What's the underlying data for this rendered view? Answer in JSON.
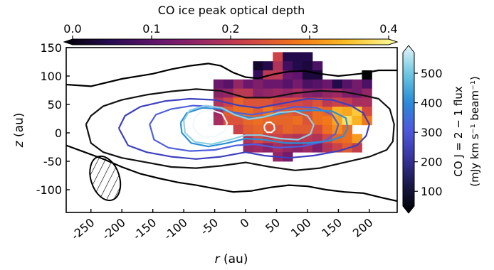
{
  "chart_data": {
    "type": "heatmap",
    "title": "",
    "xlabel": "r (au)",
    "ylabel": "z (au)",
    "xlim": [
      -290,
      245
    ],
    "ylim": [
      -140,
      150
    ],
    "xticks": [
      -250,
      -200,
      -150,
      -100,
      -50,
      0,
      50,
      100,
      150,
      200
    ],
    "xtick_labels": [
      "-250",
      "-200",
      "-150",
      "-100",
      "-50",
      "0",
      "50",
      "100",
      "150",
      "200"
    ],
    "yticks": [
      -100,
      -50,
      0,
      50,
      100,
      150
    ],
    "ytick_labels": [
      "-100",
      "-50",
      "0",
      "50",
      "100",
      "150"
    ],
    "heatmap": {
      "colorbar_label": "CO ice peak optical depth",
      "vmin": 0.0,
      "vmax": 0.4,
      "colorbar_ticks": [
        0.0,
        0.1,
        0.2,
        0.3,
        0.4
      ],
      "colorbar_tick_labels": [
        "0.0",
        "0.1",
        "0.2",
        "0.3",
        "0.4"
      ],
      "cell_size_au": 16,
      "x0_au": -68,
      "y_top_au": 142,
      "rows": [
        [
          null,
          null,
          null,
          null,
          null,
          null,
          null,
          0.22,
          0.05,
          0.05,
          0.05,
          null,
          null,
          null,
          null,
          null,
          null,
          null
        ],
        [
          null,
          null,
          null,
          null,
          null,
          0.03,
          0.05,
          0.19,
          0.08,
          0.05,
          0.04,
          0.09,
          null,
          null,
          null,
          null,
          null,
          null
        ],
        [
          null,
          null,
          null,
          null,
          null,
          0.07,
          0.2,
          0.2,
          0.12,
          0.11,
          0.04,
          0.04,
          null,
          null,
          null,
          null,
          0.0,
          null
        ],
        [
          null,
          0.12,
          0.1,
          0.16,
          0.12,
          0.14,
          0.12,
          0.12,
          0.1,
          0.13,
          0.09,
          0.1,
          0.12,
          0.05,
          0.1,
          0.13,
          0.09,
          null
        ],
        [
          null,
          0.15,
          0.16,
          0.2,
          0.2,
          0.15,
          0.16,
          0.17,
          0.16,
          0.18,
          0.15,
          0.14,
          0.16,
          0.17,
          0.14,
          0.13,
          0.16,
          null
        ],
        [
          null,
          0.19,
          0.22,
          0.26,
          0.24,
          0.24,
          0.24,
          0.22,
          0.23,
          0.23,
          0.22,
          0.24,
          0.2,
          0.22,
          0.21,
          0.18,
          0.18,
          null
        ],
        [
          null,
          0.17,
          0.25,
          0.27,
          0.27,
          0.25,
          0.28,
          0.25,
          0.25,
          0.24,
          0.24,
          0.27,
          0.26,
          0.33,
          0.32,
          0.35,
          0.23,
          null
        ],
        [
          null,
          0.18,
          0.24,
          0.24,
          0.26,
          0.27,
          0.26,
          0.26,
          0.26,
          0.27,
          0.24,
          0.27,
          0.28,
          0.32,
          0.37,
          0.33,
          0.28,
          null
        ],
        [
          null,
          null,
          null,
          0.22,
          0.25,
          0.26,
          0.24,
          0.24,
          0.26,
          0.25,
          0.25,
          0.23,
          0.27,
          0.3,
          0.27,
          null,
          null,
          null
        ],
        [
          null,
          null,
          null,
          null,
          0.19,
          0.23,
          0.21,
          0.22,
          0.2,
          0.19,
          0.2,
          0.19,
          0.23,
          0.26,
          0.27,
          0.31,
          null,
          null
        ],
        [
          null,
          null,
          null,
          null,
          0.16,
          0.17,
          0.15,
          0.18,
          0.16,
          0.15,
          0.17,
          0.14,
          0.19,
          0.22,
          0.25,
          0.21,
          null,
          null
        ],
        [
          null,
          null,
          null,
          null,
          null,
          null,
          null,
          0.16,
          0.13,
          null,
          null,
          null,
          null,
          null,
          null,
          null,
          null,
          null
        ]
      ]
    },
    "contours": {
      "colorbar_label_line1": "CO J = 2 − 1 flux",
      "colorbar_label_line2": "(mJy km s⁻¹ beam⁻¹)",
      "vmin": 50,
      "vmax": 570,
      "colorbar_ticks": [
        100,
        200,
        300,
        400,
        500
      ],
      "colorbar_tick_labels": [
        "100",
        "200",
        "300",
        "400",
        "500"
      ],
      "levels": [
        {
          "flux": 60,
          "color": "#000000",
          "points": [
            [
              -290,
              85
            ],
            [
              -250,
              82
            ],
            [
              -200,
              95
            ],
            [
              -150,
              104
            ],
            [
              -120,
              112
            ],
            [
              -90,
              118
            ],
            [
              -60,
              122
            ],
            [
              -40,
              118
            ],
            [
              -20,
              106
            ],
            [
              0,
              98
            ],
            [
              20,
              96
            ],
            [
              45,
              103
            ],
            [
              70,
              108
            ],
            [
              95,
              109
            ],
            [
              120,
              104
            ],
            [
              150,
              100
            ],
            [
              185,
              104
            ],
            [
              215,
              110
            ],
            [
              245,
              110
            ]
          ]
        },
        {
          "flux": 60,
          "color": "#000000",
          "points": [
            [
              -290,
              -22
            ],
            [
              -260,
              -34
            ],
            [
              -230,
              -46
            ],
            [
              -200,
              -60
            ],
            [
              -170,
              -72
            ],
            [
              -140,
              -80
            ],
            [
              -110,
              -87
            ],
            [
              -80,
              -92
            ],
            [
              -50,
              -98
            ],
            [
              -20,
              -104
            ],
            [
              10,
              -102
            ],
            [
              40,
              -96
            ],
            [
              70,
              -92
            ],
            [
              100,
              -94
            ],
            [
              130,
              -100
            ],
            [
              160,
              -104
            ],
            [
              190,
              -106
            ],
            [
              220,
              -114
            ],
            [
              245,
              -120
            ]
          ]
        },
        {
          "flux": 100,
          "color": "#111111",
          "points": [
            [
              -258,
              15
            ],
            [
              -250,
              30
            ],
            [
              -230,
              47
            ],
            [
              -200,
              58
            ],
            [
              -160,
              67
            ],
            [
              -120,
              73
            ],
            [
              -80,
              77
            ],
            [
              -40,
              74
            ],
            [
              0,
              62
            ],
            [
              40,
              62
            ],
            [
              80,
              70
            ],
            [
              120,
              74
            ],
            [
              160,
              72
            ],
            [
              190,
              66
            ],
            [
              215,
              60
            ],
            [
              233,
              42
            ],
            [
              240,
              15
            ],
            [
              238,
              -15
            ],
            [
              228,
              -30
            ],
            [
              200,
              -42
            ],
            [
              160,
              -52
            ],
            [
              120,
              -62
            ],
            [
              80,
              -66
            ],
            [
              40,
              -60
            ],
            [
              0,
              -52
            ],
            [
              -40,
              -58
            ],
            [
              -80,
              -62
            ],
            [
              -120,
              -60
            ],
            [
              -160,
              -52
            ],
            [
              -200,
              -44
            ],
            [
              -230,
              -34
            ],
            [
              -250,
              -18
            ],
            [
              -258,
              15
            ]
          ]
        },
        {
          "flux": 180,
          "color": "#3d3fbd",
          "points": [
            [
              -205,
              8
            ],
            [
              -195,
              30
            ],
            [
              -170,
              46
            ],
            [
              -130,
              56
            ],
            [
              -90,
              60
            ],
            [
              -50,
              58
            ],
            [
              -10,
              48
            ],
            [
              20,
              44
            ],
            [
              60,
              52
            ],
            [
              100,
              60
            ],
            [
              140,
              58
            ],
            [
              170,
              48
            ],
            [
              190,
              35
            ],
            [
              200,
              15
            ],
            [
              195,
              -5
            ],
            [
              180,
              -22
            ],
            [
              150,
              -32
            ],
            [
              110,
              -40
            ],
            [
              70,
              -44
            ],
            [
              30,
              -40
            ],
            [
              0,
              -34
            ],
            [
              -40,
              -42
            ],
            [
              -80,
              -46
            ],
            [
              -120,
              -42
            ],
            [
              -160,
              -34
            ],
            [
              -190,
              -22
            ],
            [
              -205,
              8
            ]
          ]
        },
        {
          "flux": 260,
          "color": "#4f5fdc",
          "points": [
            [
              -155,
              15
            ],
            [
              -145,
              32
            ],
            [
              -120,
              42
            ],
            [
              -85,
              48
            ],
            [
              -50,
              46
            ],
            [
              -20,
              36
            ],
            [
              10,
              32
            ],
            [
              45,
              38
            ],
            [
              80,
              46
            ],
            [
              115,
              44
            ],
            [
              140,
              32
            ],
            [
              150,
              15
            ],
            [
              145,
              -2
            ],
            [
              125,
              -16
            ],
            [
              90,
              -24
            ],
            [
              50,
              -26
            ],
            [
              15,
              -20
            ],
            [
              -15,
              -22
            ],
            [
              -50,
              -30
            ],
            [
              -90,
              -32
            ],
            [
              -125,
              -26
            ],
            [
              -148,
              -12
            ],
            [
              -155,
              15
            ]
          ]
        },
        {
          "flux": 340,
          "color": "#2c8fd6",
          "points": [
            [
              -105,
              18
            ],
            [
              -95,
              35
            ],
            [
              -70,
              44
            ],
            [
              -40,
              42
            ],
            [
              -15,
              32
            ],
            [
              10,
              26
            ],
            [
              40,
              30
            ],
            [
              75,
              38
            ],
            [
              110,
              40
            ],
            [
              140,
              38
            ],
            [
              162,
              26
            ],
            [
              165,
              8
            ],
            [
              158,
              -6
            ],
            [
              135,
              -14
            ],
            [
              100,
              -18
            ],
            [
              65,
              -18
            ],
            [
              30,
              -12
            ],
            [
              0,
              -10
            ],
            [
              -30,
              -18
            ],
            [
              -60,
              -24
            ],
            [
              -88,
              -18
            ],
            [
              -103,
              0
            ],
            [
              -105,
              18
            ]
          ]
        },
        {
          "flux": 430,
          "color": "#8fd0e2",
          "points": [
            [
              -100,
              22
            ],
            [
              -90,
              40
            ],
            [
              -65,
              48
            ],
            [
              -38,
              44
            ],
            [
              -18,
              32
            ],
            [
              5,
              24
            ],
            [
              30,
              28
            ],
            [
              55,
              36
            ],
            [
              80,
              38
            ],
            [
              100,
              30
            ],
            [
              110,
              14
            ],
            [
              105,
              -2
            ],
            [
              85,
              -12
            ],
            [
              55,
              -10
            ],
            [
              25,
              -4
            ],
            [
              0,
              -4
            ],
            [
              -25,
              -12
            ],
            [
              -55,
              -20
            ],
            [
              -82,
              -16
            ],
            [
              -98,
              0
            ],
            [
              -100,
              22
            ]
          ]
        },
        {
          "flux": 520,
          "color": "#f2f8fa",
          "points": [
            [
              -83,
              25
            ],
            [
              -73,
              37
            ],
            [
              -55,
              40
            ],
            [
              -38,
              34
            ],
            [
              -30,
              18
            ],
            [
              -33,
              4
            ],
            [
              -48,
              -6
            ],
            [
              -68,
              -8
            ],
            [
              -80,
              2
            ],
            [
              -85,
              12
            ],
            [
              -83,
              25
            ]
          ]
        },
        {
          "flux": 520,
          "color": "#f2f8fa",
          "points": [
            [
              30,
              12
            ],
            [
              34,
              18
            ],
            [
              40,
              19
            ],
            [
              46,
              14
            ],
            [
              47,
              6
            ],
            [
              42,
              1
            ],
            [
              35,
              1
            ],
            [
              31,
              5
            ],
            [
              30,
              12
            ]
          ]
        }
      ]
    },
    "beam": {
      "center_au": [
        -227,
        -80
      ],
      "width_au": 46,
      "height_au": 80,
      "angle_deg": -18
    }
  }
}
